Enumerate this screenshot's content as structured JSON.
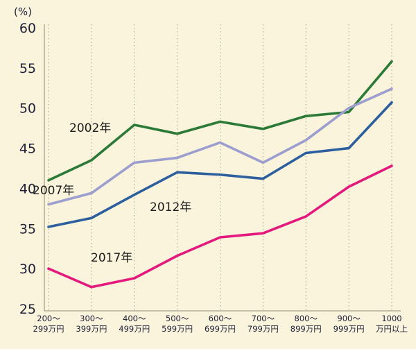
{
  "chart_data": {
    "type": "line",
    "title": "",
    "unit_label": "(%)",
    "xlabel": "",
    "ylabel": "(%)",
    "ylim": [
      25,
      60
    ],
    "yticks": [
      60,
      55,
      50,
      45,
      40,
      35,
      30,
      25
    ],
    "grid": "vertical-dotted",
    "legend_position": "inline-labels-on-lines",
    "background_color": "#faf4dc",
    "categories": [
      "200〜299万円",
      "300〜399万円",
      "400〜499万円",
      "500〜599万円",
      "600〜699万円",
      "700〜799万円",
      "800〜899万円",
      "900〜999万円",
      "1000万円以上"
    ],
    "categories_line1": [
      "200〜",
      "300〜",
      "400〜",
      "500〜",
      "600〜",
      "700〜",
      "800〜",
      "900〜",
      "1000"
    ],
    "categories_line2": [
      "299万円",
      "399万円",
      "499万円",
      "599万円",
      "699万円",
      "799万円",
      "899万円",
      "999万円",
      "万円以上"
    ],
    "series": [
      {
        "name": "2002年",
        "key": "2002",
        "color": "#2c7a38",
        "values": [
          41.0,
          43.5,
          47.9,
          46.8,
          48.3,
          47.4,
          49.0,
          49.5,
          55.8
        ]
      },
      {
        "name": "2007年",
        "key": "2007",
        "color": "#9c9ecf",
        "values": [
          38.0,
          39.4,
          43.2,
          43.8,
          45.7,
          43.2,
          46.0,
          50.0,
          52.4
        ]
      },
      {
        "name": "2012年",
        "key": "2012",
        "color": "#2d5f9e",
        "values": [
          35.2,
          36.3,
          39.2,
          42.0,
          41.7,
          41.2,
          44.4,
          45.0,
          50.7
        ]
      },
      {
        "name": "2017年",
        "key": "2017",
        "color": "#e4197e",
        "values": [
          30.0,
          27.7,
          28.8,
          31.6,
          33.9,
          34.4,
          36.5,
          40.2,
          42.8
        ]
      }
    ]
  }
}
